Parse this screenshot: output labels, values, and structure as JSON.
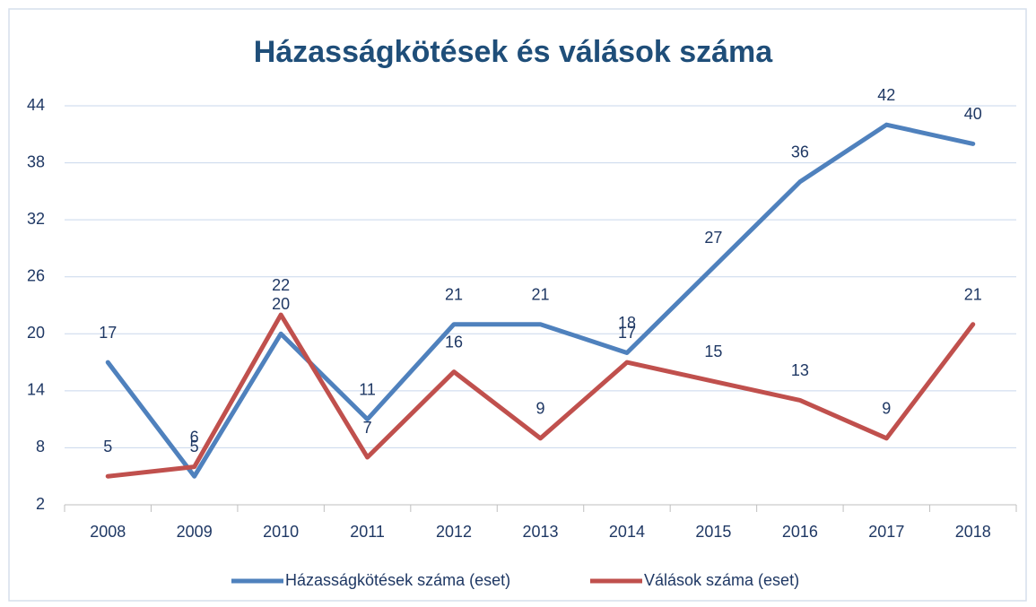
{
  "chart_data": {
    "type": "line",
    "title": "Házasságkötések és válások száma",
    "categories": [
      "2008",
      "2009",
      "2010",
      "2011",
      "2012",
      "2013",
      "2014",
      "2015",
      "2016",
      "2017",
      "2018"
    ],
    "series": [
      {
        "name": "Házasságkötések száma (eset)",
        "color": "#4f81bd",
        "values": [
          17,
          5,
          20,
          11,
          21,
          21,
          18,
          27,
          36,
          42,
          40
        ]
      },
      {
        "name": "Válások száma (eset)",
        "color": "#c0504d",
        "values": [
          5,
          6,
          22,
          7,
          16,
          9,
          17,
          15,
          13,
          9,
          21
        ]
      }
    ],
    "ylim": [
      2,
      44
    ],
    "yticks": [
      2,
      8,
      14,
      20,
      26,
      32,
      38,
      44
    ],
    "grid": true,
    "legend": "bottom"
  }
}
